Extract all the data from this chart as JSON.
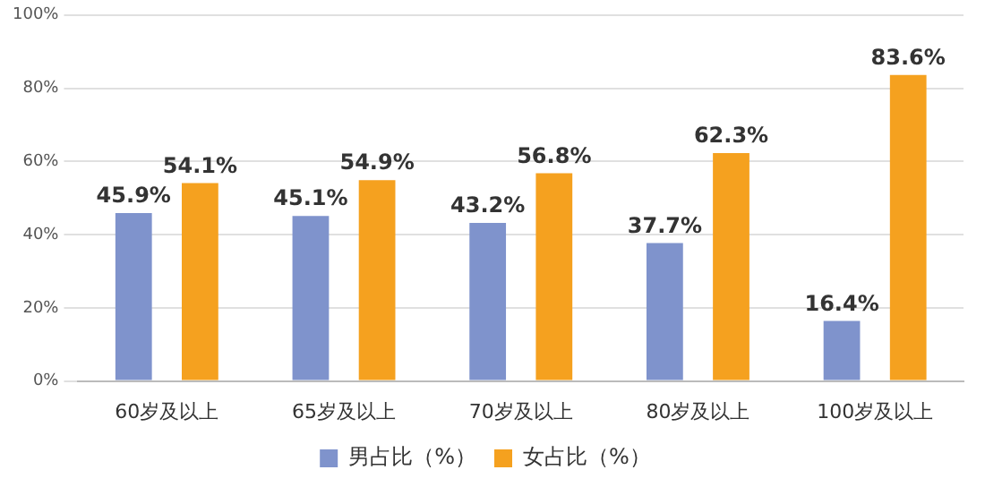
{
  "chart_data": {
    "type": "bar",
    "categories": [
      "60岁及以上",
      "65岁及以上",
      "70岁及以上",
      "80岁及以上",
      "100岁及以上"
    ],
    "series": [
      {
        "name": "男占比（%）",
        "color": "#7f93cc",
        "values": [
          45.9,
          45.1,
          43.2,
          37.7,
          16.4
        ],
        "value_labels": [
          "45.9%",
          "45.1%",
          "43.2%",
          "37.7%",
          "16.4%"
        ]
      },
      {
        "name": "女占比（%）",
        "color": "#f5a11f",
        "values": [
          54.1,
          54.9,
          56.8,
          62.3,
          83.6
        ],
        "value_labels": [
          "54.1%",
          "54.9%",
          "56.8%",
          "62.3%",
          "83.6%"
        ]
      }
    ],
    "ylim": [
      0,
      100
    ],
    "yticks": [
      {
        "value": 0,
        "label": "0%"
      },
      {
        "value": 20,
        "label": "20%"
      },
      {
        "value": 40,
        "label": "40%"
      },
      {
        "value": 60,
        "label": "60%"
      },
      {
        "value": 80,
        "label": "80%"
      },
      {
        "value": 100,
        "label": "100%"
      }
    ],
    "grid": "y",
    "legend": "bottom"
  }
}
